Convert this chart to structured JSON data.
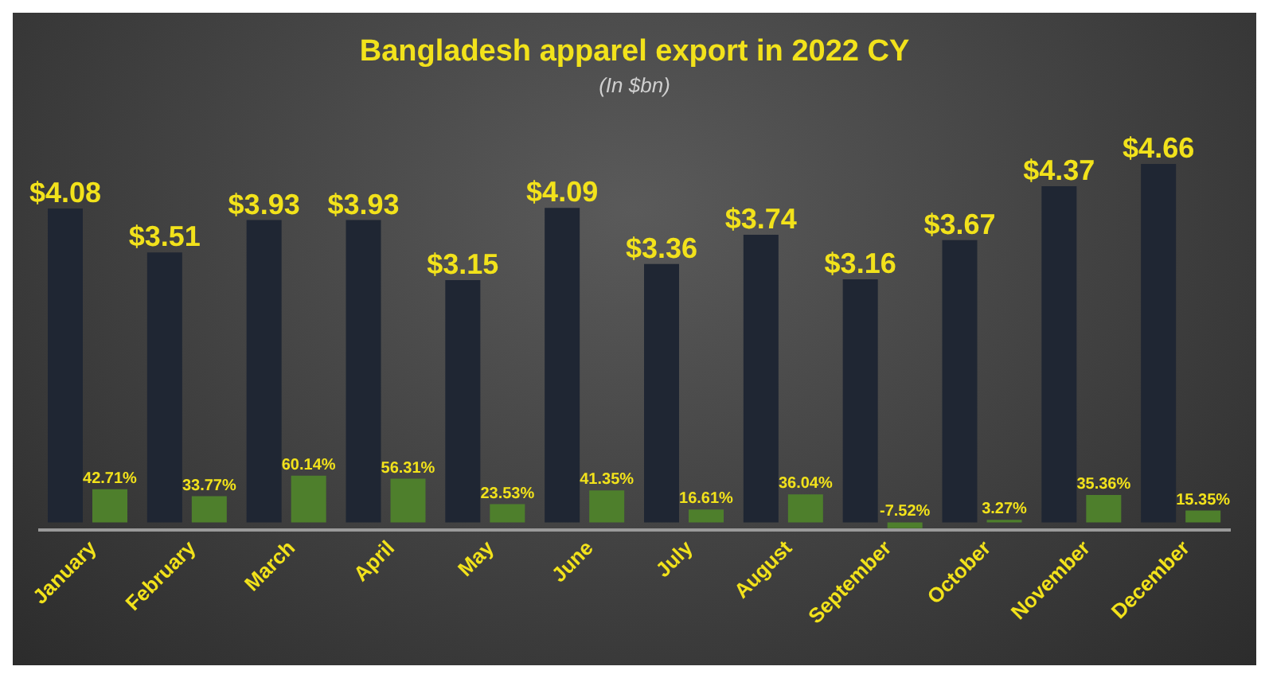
{
  "chart_data": {
    "type": "bar",
    "title": "Bangladesh apparel export in 2022 CY",
    "subtitle": "(In $bn)",
    "categories": [
      "January",
      "February",
      "March",
      "April",
      "May",
      "June",
      "July",
      "August",
      "September",
      "October",
      "November",
      "December"
    ],
    "series": [
      {
        "color": "#1f2633",
        "values": [
          4.08,
          3.51,
          3.93,
          3.93,
          3.15,
          4.09,
          3.36,
          3.74,
          3.16,
          3.67,
          4.37,
          4.66
        ],
        "value_labels": [
          "$4.08",
          "$3.51",
          "$3.93",
          "$3.93",
          "$3.15",
          "$4.09",
          "$3.36",
          "$3.74",
          "$3.16",
          "$3.67",
          "$4.37",
          "$4.66"
        ]
      },
      {
        "color": "#4e7f2c",
        "axis": "y2",
        "values": [
          42.71,
          33.77,
          60.14,
          56.31,
          23.53,
          41.35,
          16.61,
          36.04,
          -7.52,
          3.27,
          35.36,
          15.35
        ],
        "value_labels": [
          "42.71%",
          "33.77%",
          "60.14%",
          "56.31%",
          "23.53%",
          "41.35%",
          "16.61%",
          "36.04%",
          "-7.52%",
          "3.27%",
          "35.36%",
          "15.35%"
        ]
      }
    ],
    "grid": false,
    "legend": false
  }
}
